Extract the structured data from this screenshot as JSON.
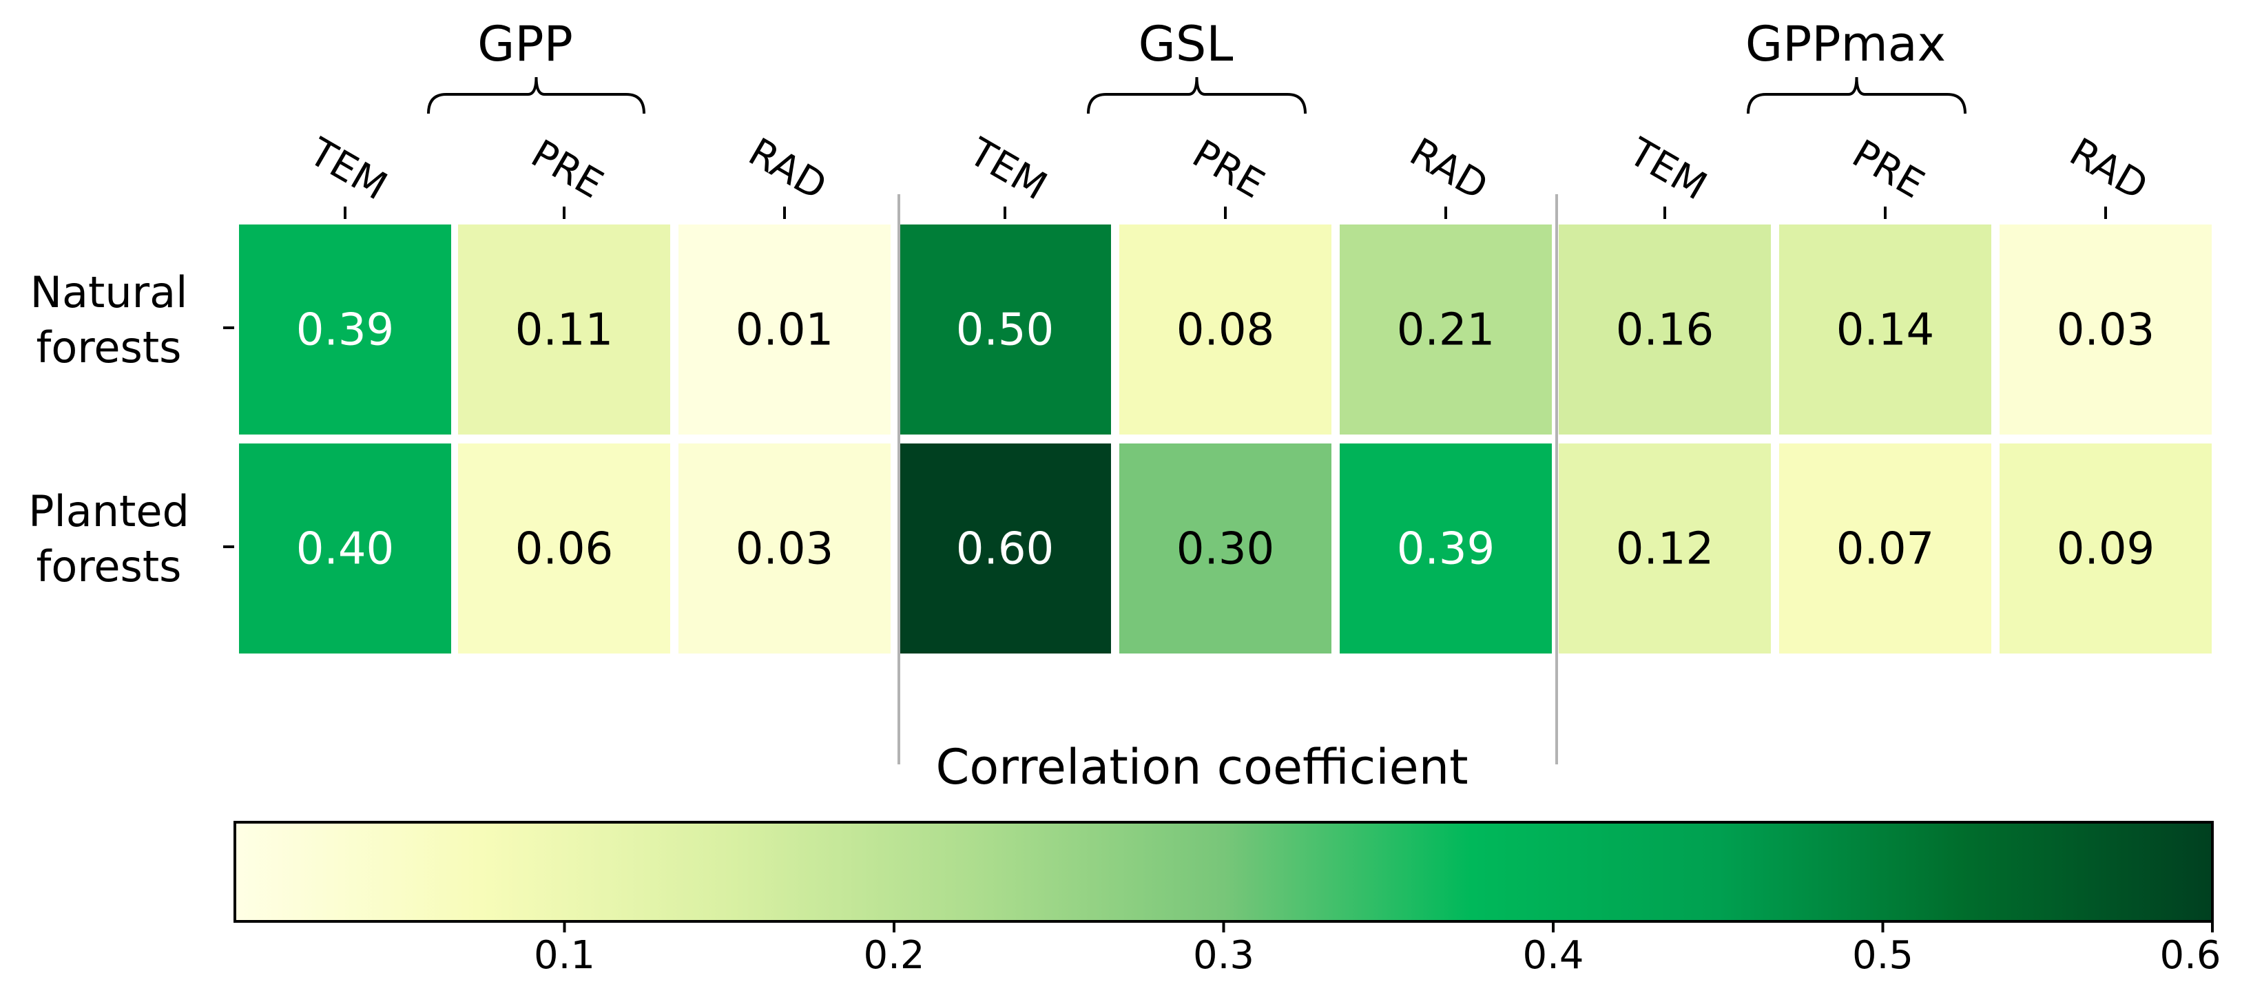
{
  "chart_data": {
    "type": "heatmap",
    "groups": [
      {
        "name": "GPP",
        "columns": [
          "TEM",
          "PRE",
          "RAD"
        ]
      },
      {
        "name": "GSL",
        "columns": [
          "TEM",
          "PRE",
          "RAD"
        ]
      },
      {
        "name": "GPPmax",
        "columns": [
          "TEM",
          "PRE",
          "RAD"
        ]
      }
    ],
    "rows": [
      {
        "label": [
          "Natural",
          "forests"
        ],
        "values": [
          "0.39",
          "0.11",
          "0.01",
          "0.50",
          "0.08",
          "0.21",
          "0.16",
          "0.14",
          "0.03"
        ]
      },
      {
        "label": [
          "Planted",
          "forests"
        ],
        "values": [
          "0.40",
          "0.06",
          "0.03",
          "0.60",
          "0.30",
          "0.39",
          "0.12",
          "0.07",
          "0.09"
        ]
      }
    ],
    "colorbar": {
      "title": "Correlation coefficient",
      "min": 0.0,
      "max": 0.6,
      "ticks": [
        "0.1",
        "0.2",
        "0.3",
        "0.4",
        "0.5",
        "0.6"
      ],
      "colormap": "YlGn",
      "stops": [
        "#ffffe5",
        "#f7fcb9",
        "#d9f0a3",
        "#addd8e",
        "#78c679",
        "#00b85a",
        "#00a050",
        "#006d2c",
        "#004020"
      ]
    },
    "label_light_threshold": 0.33
  }
}
